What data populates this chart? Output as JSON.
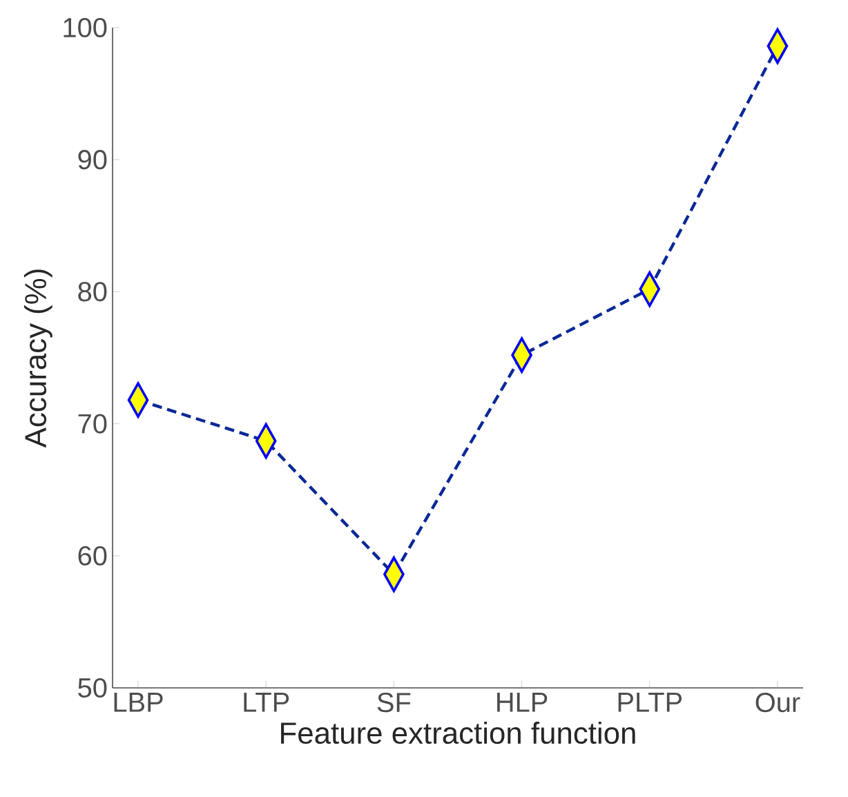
{
  "chart_data": {
    "type": "line",
    "xlabel": "Feature extraction function",
    "ylabel": "Accuracy (%)",
    "categories": [
      "LBP",
      "LTP",
      "SF",
      "HLP",
      "PLTP",
      "Our"
    ],
    "series": [
      {
        "color": "#0a2896",
        "colors": [
          "#ffff00",
          "#ffff00",
          "#ffff00",
          "#ffff00",
          "#ffff00",
          "#ffff00"
        ],
        "values": [
          71.8,
          68.7,
          58.6,
          75.2,
          80.2,
          98.6
        ]
      }
    ],
    "ylim": [
      50,
      100
    ],
    "yticks": [
      50,
      60,
      70,
      80,
      90,
      100
    ],
    "marker": "diamond",
    "line_style": "dashed",
    "grid": false
  }
}
